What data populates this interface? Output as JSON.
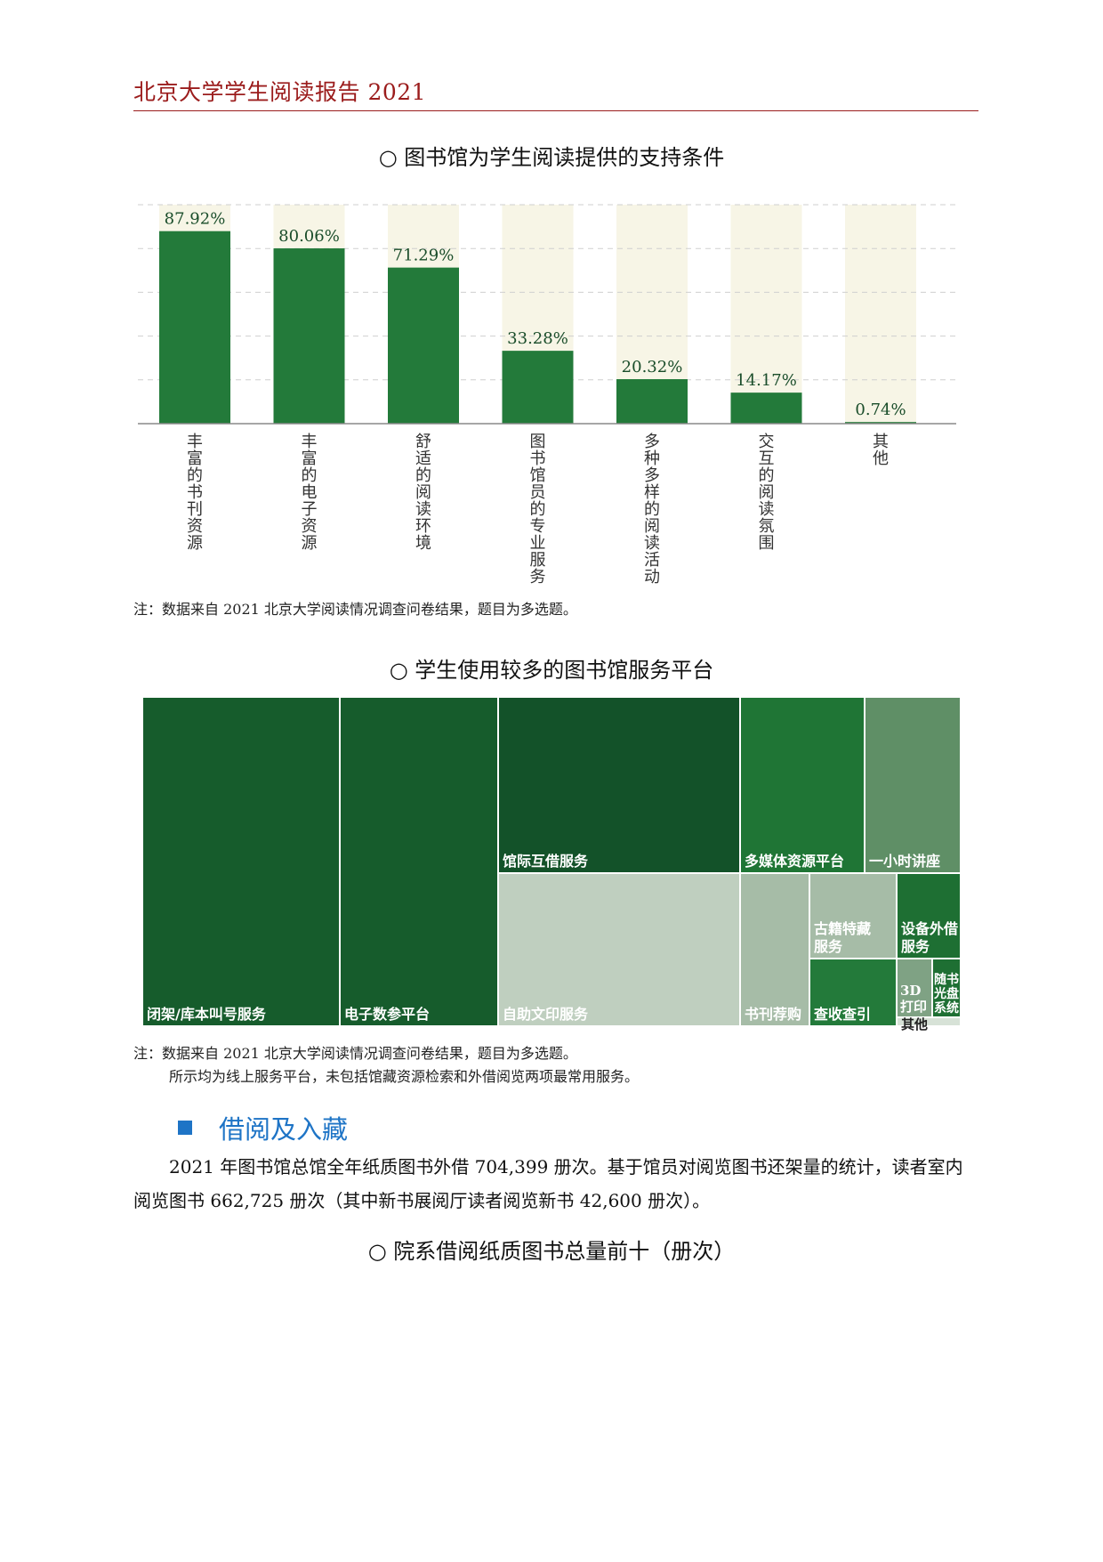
{
  "header": {
    "title": "北京大学学生阅读报告 2021"
  },
  "bar_chart": {
    "caption": "○ 图书馆为学生阅读提供的支持条件",
    "note": "注：数据来自 2021 北京大学阅读情况调查问卷结果，题目为多选题。"
  },
  "chart_data": {
    "type": "bar",
    "categories": [
      "丰富的书刊资源",
      "丰富的电子资源",
      "舒适的阅读环境",
      "图书馆员的专业服务",
      "多种多样的阅读活动",
      "交互的阅读氛围",
      "其他"
    ],
    "values": [
      87.92,
      80.06,
      71.29,
      33.28,
      20.32,
      14.17,
      0.74
    ],
    "labels": [
      "87.92%",
      "80.06%",
      "71.29%",
      "33.28%",
      "20.32%",
      "14.17%",
      "0.74%"
    ],
    "ylim": [
      0,
      100
    ],
    "grid": true,
    "colors": {
      "bar": "#237a3a",
      "background_column": "#f7f5e6",
      "grid": "#cfcfcf"
    }
  },
  "treemap": {
    "caption": "○ 学生使用较多的图书馆服务平台",
    "note_line1": "注：数据来自 2021 北京大学阅读情况调查问卷结果，题目为多选题。",
    "note_line2": "所示均为线上服务平台，未包括馆藏资源检索和外借阅览两项最常用服务。",
    "tiles": [
      {
        "label": "闭架/库本叫号服务",
        "color": "#165c2c"
      },
      {
        "label": "电子数参平台",
        "color": "#165c2c"
      },
      {
        "label": "馆际互借服务",
        "color": "#135229"
      },
      {
        "label": "自助文印服务",
        "color": "#bfcfbf"
      },
      {
        "label": "多媒体资源平台",
        "color": "#1f7535"
      },
      {
        "label": "一小时讲座",
        "color": "#5f8f66"
      },
      {
        "label": "书刊荐购",
        "color": "#a6bca7"
      },
      {
        "label": "古籍特藏服务",
        "color": "#a6bca7"
      },
      {
        "label": "设备外借服务",
        "color": "#1e6f33"
      },
      {
        "label": "查收查引",
        "color": "#237a3a"
      },
      {
        "label": "3D打印",
        "color": "#7fa284"
      },
      {
        "label": "随书光盘系统",
        "color": "#1e6f33"
      },
      {
        "label": "其他",
        "color": "#d7e2d7"
      }
    ]
  },
  "section": {
    "title": "借阅及入藏",
    "paragraph": "2021 年图书馆总馆全年纸质图书外借 704,399 册次。基于馆员对阅览图书还架量的统计，读者室内阅览图书 662,725 册次（其中新书展阅厅读者阅览新书 42,600 册次）。"
  },
  "next_caption": "○ 院系借阅纸质图书总量前十（册次）"
}
